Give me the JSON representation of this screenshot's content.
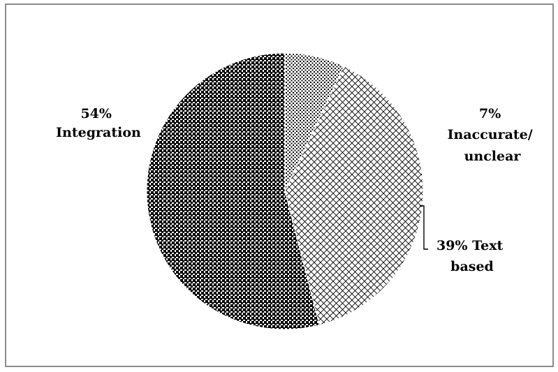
{
  "chart_data": {
    "type": "pie",
    "title": "",
    "slices": [
      {
        "label": "Inaccurate/ unclear",
        "value": 7,
        "percent_label": "7%",
        "pattern": "fine-dots"
      },
      {
        "label": "Text based",
        "value": 39,
        "percent_label": "39%",
        "pattern": "diagonal-crosshatch"
      },
      {
        "label": "Integration",
        "value": 54,
        "percent_label": "54%",
        "pattern": "checkerboard-grid"
      }
    ],
    "labels": {
      "inaccurate": {
        "line1": "7%",
        "line2": "Inaccurate/",
        "line3": "unclear"
      },
      "text_based": {
        "line1": "39% Text",
        "line2": "based"
      },
      "integration": {
        "line1": "54%",
        "line2": "Integration"
      }
    },
    "legend": "none",
    "colors": {
      "ink": "#000000",
      "background": "#ffffff",
      "border": "#8c8c8c"
    }
  }
}
